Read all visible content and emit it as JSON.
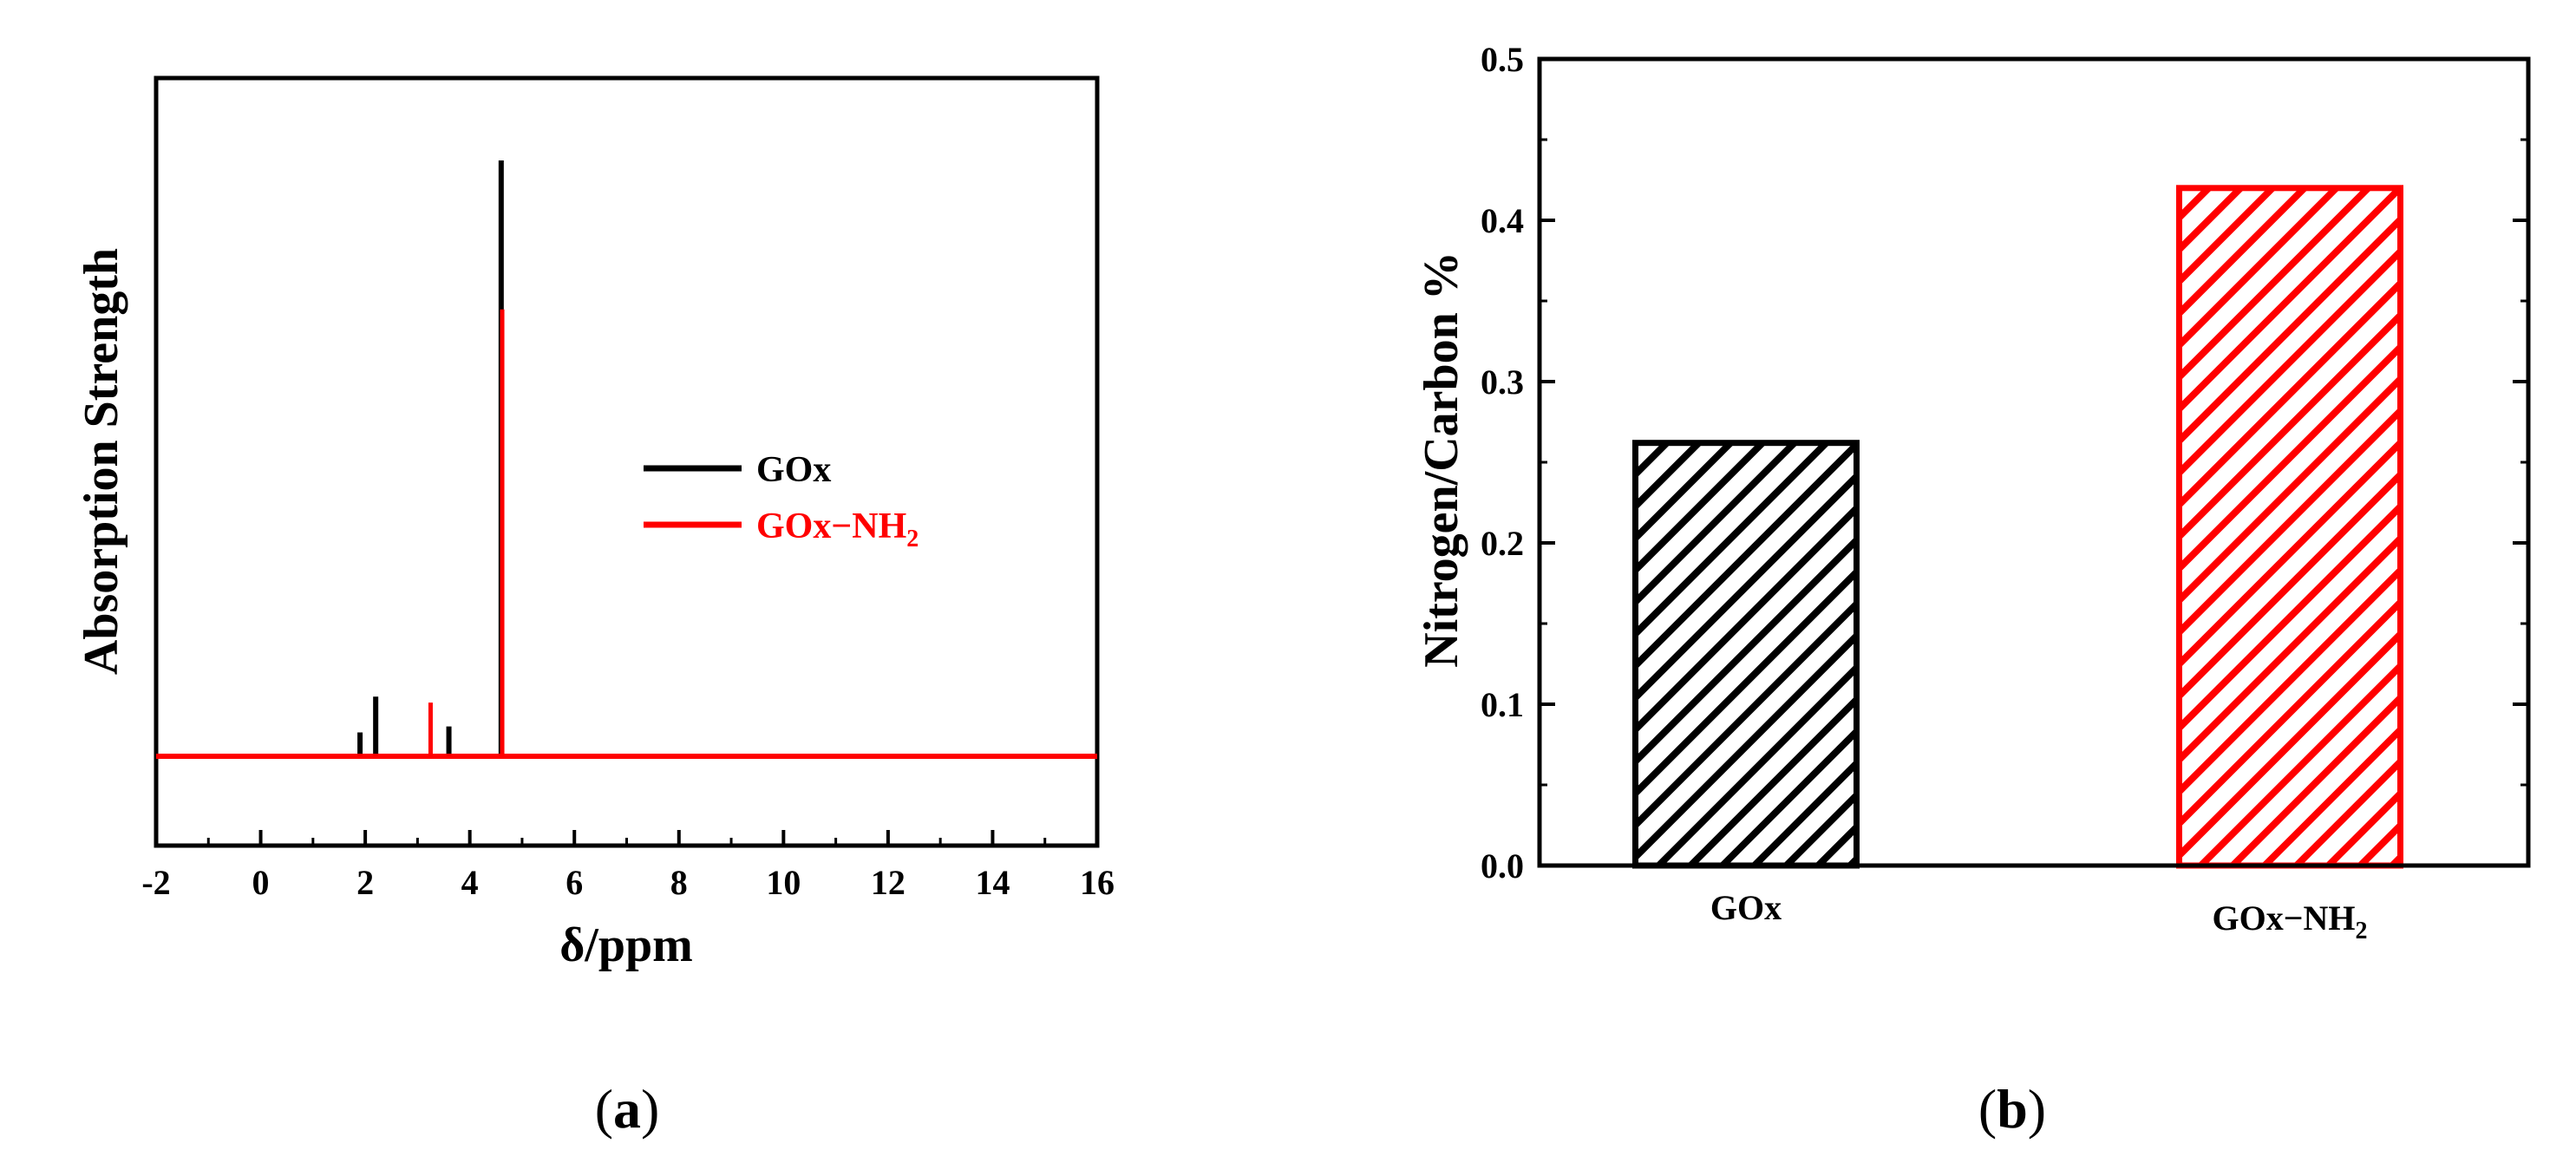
{
  "chart_data": [
    {
      "type": "line",
      "panel": "(a)",
      "xlabel": "δ/ppm",
      "ylabel": "Absorption Strength",
      "xlim": [
        -2,
        16
      ],
      "x_ticks": [
        "-2",
        "0",
        "2",
        "4",
        "6",
        "8",
        "10",
        "12",
        "14",
        "16"
      ],
      "y_ticks": [],
      "legend_position": "center-right",
      "series": [
        {
          "name": "GOx",
          "name_sub": "",
          "color": "#000000",
          "peaks": [
            {
              "x": 1.9,
              "height": 0.04
            },
            {
              "x": 2.2,
              "height": 0.1
            },
            {
              "x": 3.6,
              "height": 0.05
            },
            {
              "x": 4.6,
              "height": 1.0
            }
          ]
        },
        {
          "name": "GOx−NH",
          "name_sub": "2",
          "color": "#ff0000",
          "peaks": [
            {
              "x": 3.25,
              "height": 0.09
            },
            {
              "x": 4.62,
              "height": 0.75
            }
          ]
        }
      ]
    },
    {
      "type": "bar",
      "panel": "(b)",
      "ylabel": "Nitrogen/Carbon %",
      "ylim": [
        0,
        0.5
      ],
      "y_ticks": [
        "0.0",
        "0.1",
        "0.2",
        "0.3",
        "0.4",
        "0.5"
      ],
      "categories": [
        {
          "label": "GOx",
          "sub": ""
        },
        {
          "label": "GOx−NH",
          "sub": "2"
        }
      ],
      "values": [
        0.262,
        0.42
      ],
      "colors": [
        "#000000",
        "#ff0000"
      ],
      "fill": "diagonal-hatch"
    }
  ],
  "labels": {
    "a": {
      "open": "(",
      "letter": "a",
      "close": ")"
    },
    "b": {
      "open": "(",
      "letter": "b",
      "close": ")"
    }
  }
}
